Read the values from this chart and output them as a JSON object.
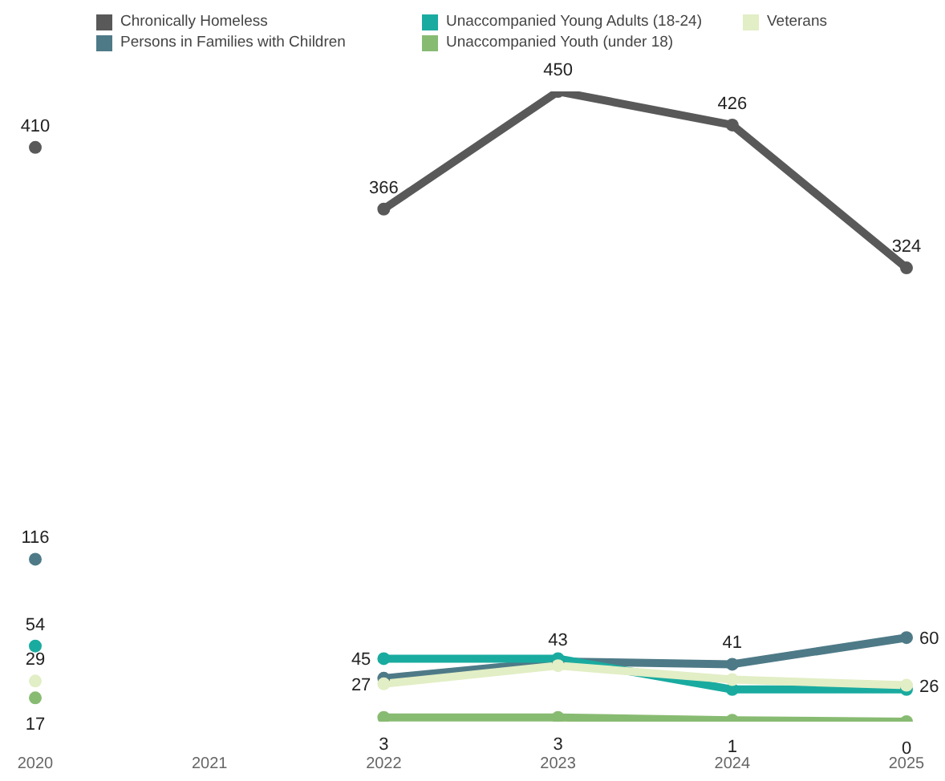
{
  "chart_data": {
    "type": "line",
    "categories": [
      "2020",
      "2021",
      "2022",
      "2023",
      "2024",
      "2025"
    ],
    "tick_labels": "x",
    "legend": "top",
    "marker": "circle",
    "series": [
      {
        "name": "Chronically Homeless",
        "color": "#595959",
        "values": [
          410,
          null,
          366,
          450,
          426,
          324
        ],
        "value_labels": [
          "410",
          null,
          "366",
          "450",
          "426",
          "324"
        ]
      },
      {
        "name": "Persons in Families with Children",
        "color": "#4e7a87",
        "values": [
          116,
          null,
          31,
          43,
          41,
          60
        ],
        "value_labels": [
          "116",
          null,
          null,
          "43",
          "41",
          "60"
        ]
      },
      {
        "name": "Unaccompanied Young Adults (18-24)",
        "color": "#1aaba0",
        "values": [
          54,
          null,
          45,
          45,
          23,
          23
        ],
        "value_labels": [
          "54",
          null,
          "45",
          null,
          null,
          null
        ]
      },
      {
        "name": "Unaccompanied Youth (under 18)",
        "color": "#88bb72",
        "values": [
          17,
          null,
          3,
          3,
          1,
          0
        ],
        "value_labels": [
          "17",
          null,
          "3",
          "3",
          "1",
          "0"
        ]
      },
      {
        "name": "Veterans",
        "color": "#e2eec5",
        "values": [
          29,
          null,
          27,
          40,
          30,
          26
        ],
        "value_labels": [
          "29",
          null,
          "27",
          null,
          null,
          "26"
        ]
      }
    ]
  }
}
